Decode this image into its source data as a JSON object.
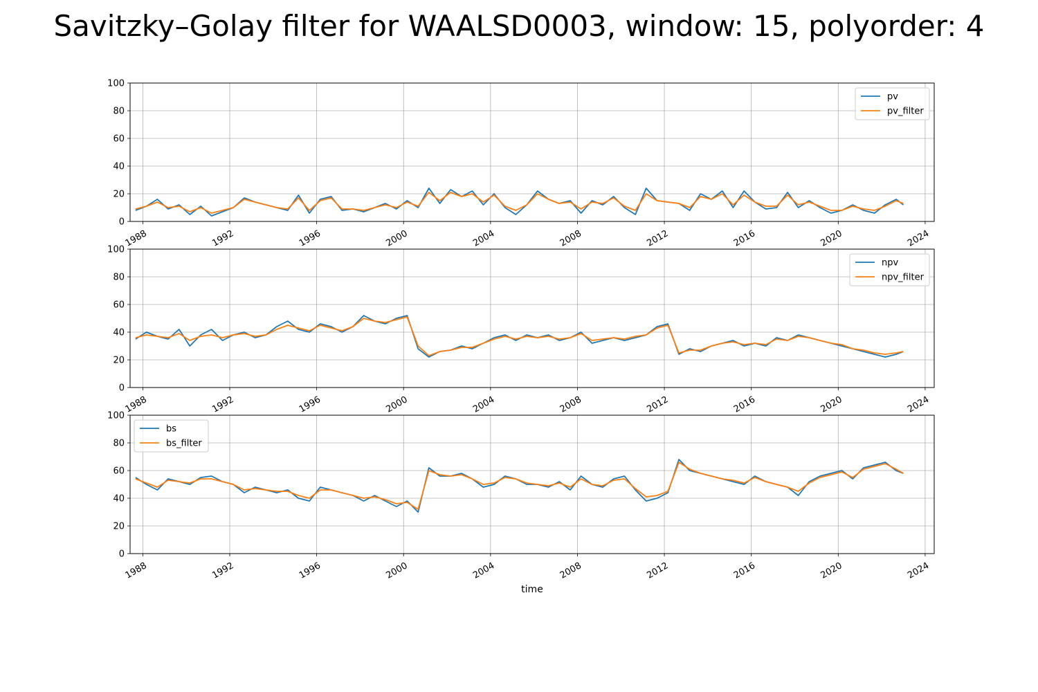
{
  "figure": {
    "title": "Savitzky–Golay filter for WAALSD0003, window: 15, polyorder: 4"
  },
  "chart_data": [
    {
      "type": "line",
      "xlabel": "",
      "ylabel": "",
      "x_range": [
        "1987-06-01",
        "2024-06-01"
      ],
      "ylim": [
        0,
        100
      ],
      "y_ticks": [
        0,
        20,
        40,
        60,
        80,
        100
      ],
      "x_ticks": [
        "1988",
        "1992",
        "1996",
        "2000",
        "2004",
        "2008",
        "2012",
        "2016",
        "2020",
        "2024"
      ],
      "grid": true,
      "legend_placement": "upper right",
      "x": [
        "1987-09",
        "1988-03",
        "1988-09",
        "1989-03",
        "1989-09",
        "1990-03",
        "1990-09",
        "1991-03",
        "1991-09",
        "1992-03",
        "1992-09",
        "1993-03",
        "1993-09",
        "1994-03",
        "1994-09",
        "1995-03",
        "1995-09",
        "1996-03",
        "1996-09",
        "1997-03",
        "1997-09",
        "1998-03",
        "1998-09",
        "1999-03",
        "1999-09",
        "2000-03",
        "2000-09",
        "2001-03",
        "2001-09",
        "2002-03",
        "2002-09",
        "2003-03",
        "2003-09",
        "2004-03",
        "2004-09",
        "2005-03",
        "2005-09",
        "2006-03",
        "2006-09",
        "2007-03",
        "2007-09",
        "2008-03",
        "2008-09",
        "2009-03",
        "2009-09",
        "2010-03",
        "2010-09",
        "2011-03",
        "2011-09",
        "2012-03",
        "2012-09",
        "2013-03",
        "2013-09",
        "2014-03",
        "2014-09",
        "2015-03",
        "2015-09",
        "2016-03",
        "2016-09",
        "2017-03",
        "2017-09",
        "2018-03",
        "2018-09",
        "2019-03",
        "2019-09",
        "2020-03",
        "2020-09",
        "2021-03",
        "2021-09",
        "2022-03",
        "2022-09",
        "2023-01"
      ],
      "series": [
        {
          "name": "pv",
          "color": "#1f77b4",
          "values": [
            8,
            11,
            16,
            9,
            12,
            5,
            11,
            4,
            7,
            10,
            17,
            14,
            12,
            10,
            8,
            19,
            6,
            16,
            18,
            8,
            9,
            7,
            10,
            13,
            9,
            15,
            10,
            24,
            13,
            23,
            18,
            22,
            12,
            20,
            10,
            5,
            12,
            22,
            16,
            13,
            15,
            6,
            15,
            12,
            18,
            10,
            5,
            24,
            15,
            14,
            13,
            8,
            20,
            16,
            22,
            10,
            22,
            14,
            9,
            10,
            21,
            10,
            15,
            10,
            6,
            8,
            12,
            8,
            6,
            12,
            16,
            12
          ]
        },
        {
          "name": "pv_filter",
          "color": "#ff7f0e",
          "values": [
            9,
            11,
            14,
            10,
            11,
            7,
            10,
            6,
            8,
            10,
            16,
            14,
            12,
            10,
            9,
            17,
            8,
            15,
            17,
            9,
            9,
            8,
            10,
            12,
            10,
            14,
            11,
            21,
            15,
            21,
            18,
            20,
            14,
            19,
            11,
            8,
            12,
            20,
            16,
            13,
            14,
            9,
            14,
            13,
            17,
            11,
            8,
            20,
            15,
            14,
            13,
            10,
            18,
            16,
            20,
            12,
            19,
            14,
            11,
            11,
            19,
            12,
            14,
            11,
            8,
            8,
            11,
            9,
            8,
            11,
            15,
            13
          ]
        }
      ]
    },
    {
      "type": "line",
      "xlabel": "",
      "ylabel": "",
      "x_range": [
        "1987-06-01",
        "2024-06-01"
      ],
      "ylim": [
        0,
        100
      ],
      "y_ticks": [
        0,
        20,
        40,
        60,
        80,
        100
      ],
      "x_ticks": [
        "1988",
        "1992",
        "1996",
        "2000",
        "2004",
        "2008",
        "2012",
        "2016",
        "2020",
        "2024"
      ],
      "grid": true,
      "legend_placement": "upper right",
      "x": [
        "1987-09",
        "1988-03",
        "1988-09",
        "1989-03",
        "1989-09",
        "1990-03",
        "1990-09",
        "1991-03",
        "1991-09",
        "1992-03",
        "1992-09",
        "1993-03",
        "1993-09",
        "1994-03",
        "1994-09",
        "1995-03",
        "1995-09",
        "1996-03",
        "1996-09",
        "1997-03",
        "1997-09",
        "1998-03",
        "1998-09",
        "1999-03",
        "1999-09",
        "2000-03",
        "2000-09",
        "2001-03",
        "2001-09",
        "2002-03",
        "2002-09",
        "2003-03",
        "2003-09",
        "2004-03",
        "2004-09",
        "2005-03",
        "2005-09",
        "2006-03",
        "2006-09",
        "2007-03",
        "2007-09",
        "2008-03",
        "2008-09",
        "2009-03",
        "2009-09",
        "2010-03",
        "2010-09",
        "2011-03",
        "2011-09",
        "2012-03",
        "2012-09",
        "2013-03",
        "2013-09",
        "2014-03",
        "2014-09",
        "2015-03",
        "2015-09",
        "2016-03",
        "2016-09",
        "2017-03",
        "2017-09",
        "2018-03",
        "2018-09",
        "2019-03",
        "2019-09",
        "2020-03",
        "2020-09",
        "2021-03",
        "2021-09",
        "2022-03",
        "2022-09",
        "2023-01"
      ],
      "series": [
        {
          "name": "npv",
          "color": "#1f77b4",
          "values": [
            35,
            40,
            37,
            35,
            42,
            30,
            38,
            42,
            34,
            38,
            40,
            36,
            38,
            44,
            48,
            42,
            40,
            46,
            44,
            40,
            44,
            52,
            48,
            46,
            50,
            52,
            28,
            22,
            26,
            27,
            30,
            28,
            32,
            36,
            38,
            34,
            38,
            36,
            38,
            34,
            36,
            40,
            32,
            34,
            36,
            34,
            36,
            38,
            44,
            46,
            24,
            28,
            26,
            30,
            32,
            34,
            30,
            32,
            30,
            36,
            34,
            38,
            36,
            34,
            32,
            30,
            28,
            26,
            24,
            22,
            24,
            26
          ]
        },
        {
          "name": "npv_filter",
          "color": "#ff7f0e",
          "values": [
            36,
            38,
            37,
            36,
            39,
            34,
            37,
            38,
            36,
            38,
            39,
            37,
            38,
            42,
            45,
            43,
            41,
            45,
            43,
            41,
            44,
            50,
            48,
            47,
            49,
            51,
            30,
            23,
            26,
            27,
            29,
            29,
            32,
            35,
            37,
            35,
            37,
            36,
            37,
            35,
            36,
            39,
            34,
            35,
            36,
            35,
            37,
            38,
            43,
            45,
            25,
            27,
            27,
            30,
            32,
            33,
            31,
            32,
            31,
            35,
            34,
            37,
            36,
            34,
            32,
            31,
            28,
            27,
            25,
            24,
            25,
            26
          ]
        }
      ]
    },
    {
      "type": "line",
      "xlabel": "time",
      "ylabel": "",
      "x_range": [
        "1987-06-01",
        "2024-06-01"
      ],
      "ylim": [
        0,
        100
      ],
      "y_ticks": [
        0,
        20,
        40,
        60,
        80,
        100
      ],
      "x_ticks": [
        "1988",
        "1992",
        "1996",
        "2000",
        "2004",
        "2008",
        "2012",
        "2016",
        "2020",
        "2024"
      ],
      "grid": true,
      "legend_placement": "upper left",
      "x": [
        "1987-09",
        "1988-03",
        "1988-09",
        "1989-03",
        "1989-09",
        "1990-03",
        "1990-09",
        "1991-03",
        "1991-09",
        "1992-03",
        "1992-09",
        "1993-03",
        "1993-09",
        "1994-03",
        "1994-09",
        "1995-03",
        "1995-09",
        "1996-03",
        "1996-09",
        "1997-03",
        "1997-09",
        "1998-03",
        "1998-09",
        "1999-03",
        "1999-09",
        "2000-03",
        "2000-09",
        "2001-03",
        "2001-09",
        "2002-03",
        "2002-09",
        "2003-03",
        "2003-09",
        "2004-03",
        "2004-09",
        "2005-03",
        "2005-09",
        "2006-03",
        "2006-09",
        "2007-03",
        "2007-09",
        "2008-03",
        "2008-09",
        "2009-03",
        "2009-09",
        "2010-03",
        "2010-09",
        "2011-03",
        "2011-09",
        "2012-03",
        "2012-09",
        "2013-03",
        "2013-09",
        "2014-03",
        "2014-09",
        "2015-03",
        "2015-09",
        "2016-03",
        "2016-09",
        "2017-03",
        "2017-09",
        "2018-03",
        "2018-09",
        "2019-03",
        "2019-09",
        "2020-03",
        "2020-09",
        "2021-03",
        "2021-09",
        "2022-03",
        "2022-09",
        "2023-01"
      ],
      "series": [
        {
          "name": "bs",
          "color": "#1f77b4",
          "values": [
            55,
            50,
            46,
            54,
            52,
            50,
            55,
            56,
            52,
            50,
            44,
            48,
            46,
            44,
            46,
            40,
            38,
            48,
            46,
            44,
            42,
            38,
            42,
            38,
            34,
            38,
            30,
            62,
            56,
            56,
            58,
            54,
            48,
            50,
            56,
            54,
            50,
            50,
            48,
            52,
            46,
            56,
            50,
            48,
            54,
            56,
            46,
            38,
            40,
            44,
            68,
            60,
            58,
            56,
            54,
            52,
            50,
            56,
            52,
            50,
            48,
            42,
            52,
            56,
            58,
            60,
            54,
            62,
            64,
            66,
            60,
            58
          ]
        },
        {
          "name": "bs_filter",
          "color": "#ff7f0e",
          "values": [
            54,
            51,
            48,
            53,
            52,
            51,
            54,
            54,
            52,
            50,
            46,
            47,
            46,
            45,
            45,
            42,
            40,
            46,
            46,
            44,
            42,
            40,
            41,
            39,
            36,
            37,
            32,
            60,
            57,
            56,
            57,
            54,
            50,
            51,
            55,
            54,
            51,
            50,
            49,
            51,
            48,
            54,
            50,
            49,
            53,
            54,
            47,
            41,
            42,
            45,
            66,
            61,
            58,
            56,
            54,
            53,
            51,
            55,
            52,
            50,
            48,
            45,
            51,
            55,
            57,
            59,
            55,
            61,
            63,
            65,
            61,
            58
          ]
        }
      ]
    }
  ]
}
